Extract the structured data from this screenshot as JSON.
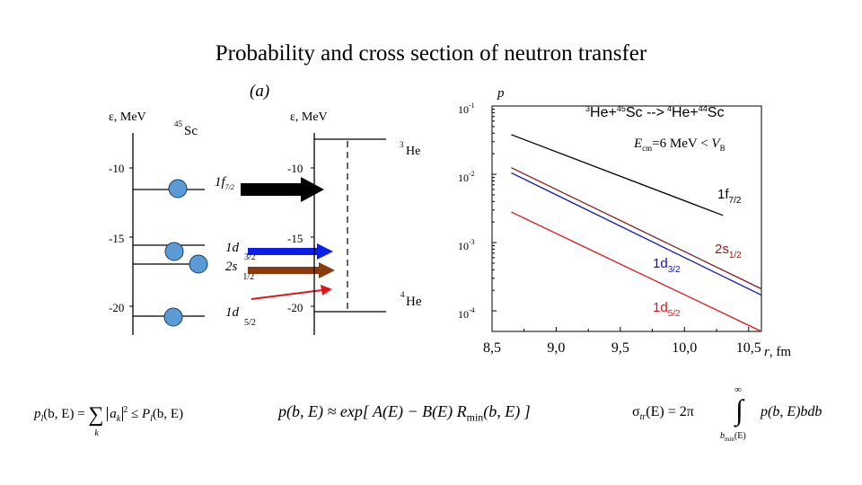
{
  "slide": {
    "title": "Probability and cross section of neutron transfer",
    "panel_label": "(a)"
  },
  "level_scheme": {
    "left_axis": {
      "label": "ε, MeV",
      "nucleus_mass": "45",
      "nucleus_symbol": "Sc",
      "ticks": [
        "-10",
        "-15",
        "-20"
      ]
    },
    "right_axis": {
      "label": "ε, MeV",
      "ticks": [
        "-10",
        "-15",
        "-20"
      ],
      "top_level_mass": "3",
      "top_level_symbol": "He",
      "bottom_level_mass": "4",
      "bottom_level_symbol": "He"
    },
    "orbitals": [
      {
        "n": "1",
        "l": "f",
        "j": "7/2",
        "arrow_color": "#000000"
      },
      {
        "n": "1",
        "l": "d",
        "j": "3/2",
        "arrow_color": "#0a1ee8"
      },
      {
        "n": "2",
        "l": "s",
        "j": "1/2",
        "arrow_color": "#8b3a0e"
      },
      {
        "n": "1",
        "l": "d",
        "j": "5/2",
        "arrow_color": "#e01515"
      }
    ],
    "circle_color": "#5b9bd5"
  },
  "chart_data": {
    "type": "line",
    "xlabel": "r, fm",
    "ylabel": "p",
    "log_y": true,
    "xlim": [
      8.5,
      10.6
    ],
    "ylim": [
      5e-05,
      0.1
    ],
    "x_ticks": [
      "8,5",
      "9,0",
      "9,5",
      "10,0",
      "10,5"
    ],
    "y_ticks": [
      {
        "base": "10",
        "exp": "-1"
      },
      {
        "base": "10",
        "exp": "-2"
      },
      {
        "base": "10",
        "exp": "-3"
      },
      {
        "base": "10",
        "exp": "-4"
      }
    ],
    "reaction": {
      "m1": "3",
      "a": "He+",
      "m2": "45",
      "b": "Sc -->",
      "m3": "4",
      "c": "He+",
      "m4": "44",
      "d": "Sc"
    },
    "energy_note": {
      "E": "E",
      "sub": "cm",
      "mid": "=6 MeV < ",
      "V": "V",
      "vsub": "B"
    },
    "series": [
      {
        "name": "1f7/2",
        "base": "1f",
        "sub": "7/2",
        "color": "#000000",
        "x": [
          8.65,
          10.3
        ],
        "y": [
          0.038,
          0.0025
        ]
      },
      {
        "name": "2s1/2",
        "base": "2s",
        "sub": "1/2",
        "color": "#8b1a1a",
        "x": [
          8.65,
          10.6
        ],
        "y": [
          0.0125,
          0.00021
        ]
      },
      {
        "name": "1d3/2",
        "base": "1d",
        "sub": "3/2",
        "color": "#1010c0",
        "x": [
          8.65,
          10.6
        ],
        "y": [
          0.0105,
          0.00017
        ]
      },
      {
        "name": "1d5/2",
        "base": "1d",
        "sub": "5/2",
        "color": "#e01515",
        "x": [
          8.65,
          10.6
        ],
        "y": [
          0.0028,
          5e-05
        ]
      }
    ]
  },
  "formulas": {
    "f1": {
      "lhs": "p",
      "lhs_sub": "l",
      "args": "(b, E) = ",
      "sum": "∑",
      "sum_sub": "k",
      "a": "a",
      "a_sub": "k",
      "pow": "2",
      "rel": " ≤ P",
      "rhs_sub": "l",
      "rhs_args": "(b, E)"
    },
    "f2": {
      "text": "p(b, E) ≈ exp[ A(E) − B(E) R",
      "sub": "min",
      "tail": "(b, E) ]"
    },
    "f3": {
      "sigma": "σ",
      "sigma_sub": "tr",
      "mid": "(E) = 2π",
      "upper": "∞",
      "lower": "b",
      "lower_sub": "min",
      "lower_tail": "(E)",
      "integrand": "p(b, E)bdb"
    }
  }
}
